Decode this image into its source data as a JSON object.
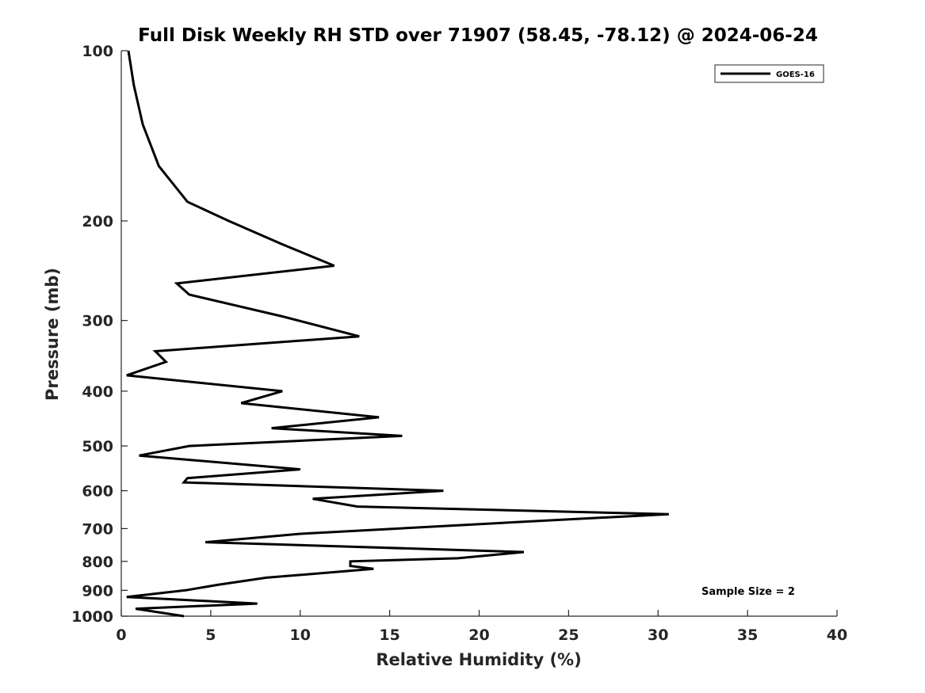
{
  "chart_data": {
    "type": "line",
    "title": "Full Disk Weekly RH STD over 71907 (58.45, -78.12) @ 2024-06-24",
    "xlabel": "Relative Humidity (%)",
    "ylabel": "Pressure (mb)",
    "xlim": [
      0,
      40
    ],
    "ylim": [
      1000,
      100
    ],
    "y_scale": "log",
    "y_reversed": true,
    "x_ticks": [
      0,
      5,
      10,
      15,
      20,
      25,
      30,
      35,
      40
    ],
    "y_ticks": [
      100,
      200,
      300,
      400,
      500,
      600,
      700,
      800,
      900,
      1000
    ],
    "grid": false,
    "legend_position": "top-right",
    "color": "#000000",
    "series": [
      {
        "name": "GOES-16",
        "points": [
          [
            0.4,
            100
          ],
          [
            0.7,
            115
          ],
          [
            1.2,
            135
          ],
          [
            2.1,
            160
          ],
          [
            3.7,
            185
          ],
          [
            6.0,
            200
          ],
          [
            9.0,
            220
          ],
          [
            11.9,
            240
          ],
          [
            3.1,
            258
          ],
          [
            3.8,
            270
          ],
          [
            9.0,
            295
          ],
          [
            13.3,
            320
          ],
          [
            1.9,
            340
          ],
          [
            2.5,
            355
          ],
          [
            0.3,
            375
          ],
          [
            9.0,
            400
          ],
          [
            6.7,
            420
          ],
          [
            14.4,
            445
          ],
          [
            8.4,
            465
          ],
          [
            15.7,
            480
          ],
          [
            3.8,
            500
          ],
          [
            1.0,
            520
          ],
          [
            10.0,
            550
          ],
          [
            3.7,
            570
          ],
          [
            3.5,
            580
          ],
          [
            18.0,
            600
          ],
          [
            10.7,
            620
          ],
          [
            13.2,
            640
          ],
          [
            30.6,
            660
          ],
          [
            22.8,
            680
          ],
          [
            10.0,
            715
          ],
          [
            4.7,
            740
          ],
          [
            22.5,
            770
          ],
          [
            18.8,
            790
          ],
          [
            12.8,
            800
          ],
          [
            12.8,
            815
          ],
          [
            14.1,
            825
          ],
          [
            8.1,
            855
          ],
          [
            5.4,
            880
          ],
          [
            3.6,
            900
          ],
          [
            0.3,
            925
          ],
          [
            7.6,
            950
          ],
          [
            0.8,
            970
          ],
          [
            3.5,
            1000
          ]
        ]
      }
    ],
    "annotation": "Sample Size = 2"
  }
}
